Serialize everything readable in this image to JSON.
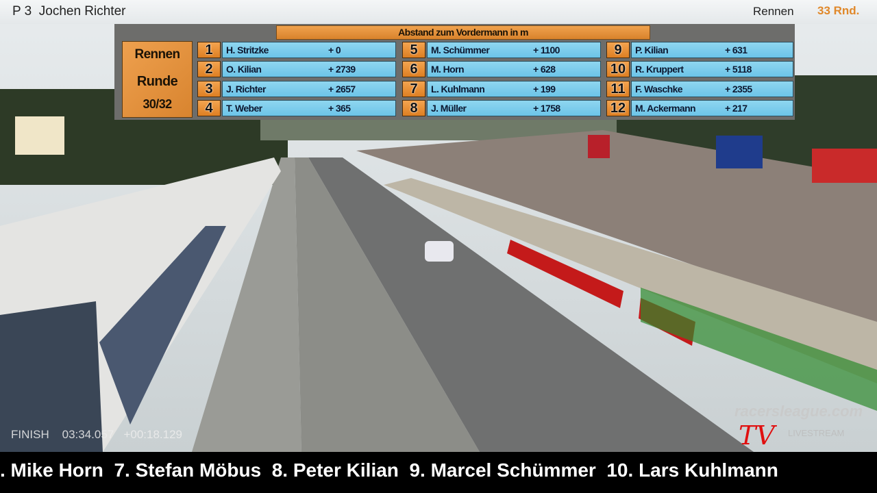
{
  "hud": {
    "position": "P 3",
    "driver": "Jochen Richter",
    "session": "Rennen",
    "laps": "33 Rnd."
  },
  "board": {
    "title": "Abstand zum Vordermann in m",
    "left_box": {
      "line1": "Rennen",
      "line2": "Runde",
      "line3": "30/32"
    },
    "rows": [
      {
        "pos": "1",
        "name": "H. Stritzke",
        "gap": "+ 0"
      },
      {
        "pos": "2",
        "name": "O. Kilian",
        "gap": "+ 2739"
      },
      {
        "pos": "3",
        "name": "J. Richter",
        "gap": "+ 2657"
      },
      {
        "pos": "4",
        "name": "T. Weber",
        "gap": "+ 365"
      },
      {
        "pos": "5",
        "name": "M. Schümmer",
        "gap": "+ 1100"
      },
      {
        "pos": "6",
        "name": "M. Horn",
        "gap": "+ 628"
      },
      {
        "pos": "7",
        "name": "L. Kuhlmann",
        "gap": "+ 199"
      },
      {
        "pos": "8",
        "name": "J. Müller",
        "gap": "+ 1758"
      },
      {
        "pos": "9",
        "name": "P. Kilian",
        "gap": "+ 631"
      },
      {
        "pos": "10",
        "name": "R. Kruppert",
        "gap": "+ 5118"
      },
      {
        "pos": "11",
        "name": "F. Waschke",
        "gap": "+ 2355"
      },
      {
        "pos": "12",
        "name": "M. Ackermann",
        "gap": "+ 217"
      }
    ]
  },
  "finish": {
    "label": "FINISH",
    "time": "03:34.057",
    "delta": "+00:18.129"
  },
  "watermark": {
    "site": "racersleague.com",
    "stream": "LIVESTREAM",
    "logo": "TV"
  },
  "ticker": ". Mike Horn  7. Stefan Möbus  8. Peter Kilian  9. Marcel Schümmer  10. Lars Kuhlmann",
  "colors": {
    "orange": "#e0882a",
    "cell_blue": "#7ccbeb",
    "panel_gray": "#6d6d6b"
  }
}
